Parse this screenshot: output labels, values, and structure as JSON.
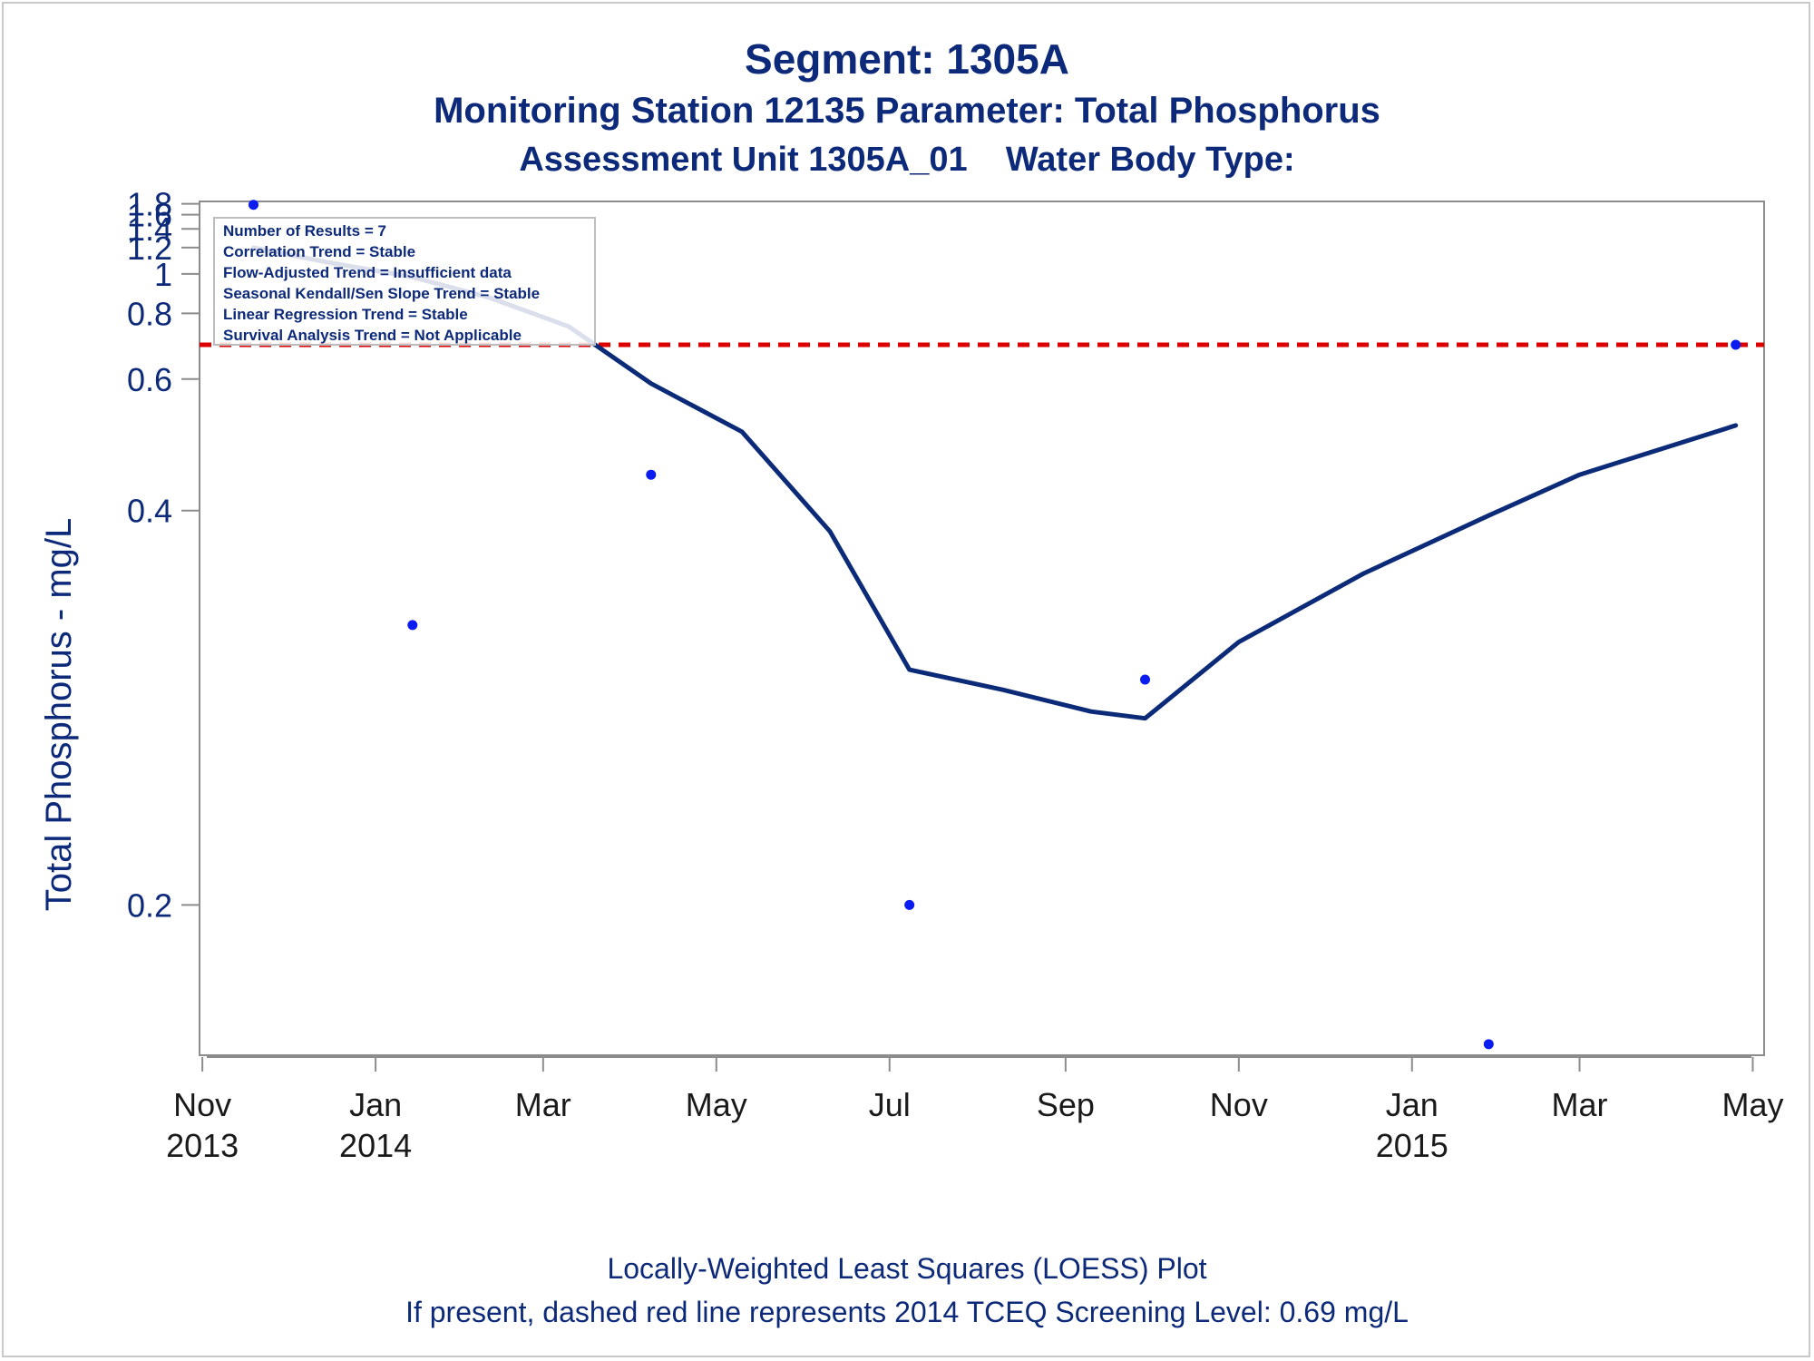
{
  "titles": {
    "title1": "Segment: 1305A",
    "title2": "Monitoring Station 12135 Parameter: Total Phosphorus",
    "title3": "Assessment Unit 1305A_01    Water Body Type:"
  },
  "footnotes": {
    "line1": "Locally-Weighted Least Squares (LOESS) Plot",
    "line2": "If present, dashed red line represents 2014 TCEQ Screening Level: 0.69 mg/L"
  },
  "inset": [
    "Number of Results = 7",
    "Correlation Trend = Stable",
    "Flow-Adjusted Trend = Insufficient data",
    "Seasonal Kendall/Sen Slope Trend = Stable",
    "Linear Regression Trend = Stable",
    "Survival Analysis Trend = Not Applicable"
  ],
  "colors": {
    "text": "#0d2a7a",
    "loess": "#0b2a78",
    "points": "#0a1cf0",
    "reference": "#dd0000",
    "axis": "#8c8c8c",
    "tick_text": "#1a1a1a"
  },
  "chart_data": {
    "type": "scatter",
    "ylabel": "Total Phosphorus - mg/L",
    "yscale": "reciprocal",
    "ylim": [
      0.168,
      1.85
    ],
    "xlim": [
      "2013-10-31",
      "2015-05-05"
    ],
    "y_ticks": [
      0.2,
      0.4,
      0.6,
      0.8,
      1,
      1.2,
      1.4,
      1.6,
      1.8
    ],
    "x_ticks": [
      {
        "date": "2013-11-01",
        "month": "Nov",
        "year": "2013"
      },
      {
        "date": "2014-01-01",
        "month": "Jan",
        "year": "2014"
      },
      {
        "date": "2014-03-01",
        "month": "Mar",
        "year": ""
      },
      {
        "date": "2014-05-01",
        "month": "May",
        "year": ""
      },
      {
        "date": "2014-07-01",
        "month": "Jul",
        "year": ""
      },
      {
        "date": "2014-09-01",
        "month": "Sep",
        "year": ""
      },
      {
        "date": "2014-11-01",
        "month": "Nov",
        "year": ""
      },
      {
        "date": "2015-01-01",
        "month": "Jan",
        "year": "2015"
      },
      {
        "date": "2015-03-01",
        "month": "Mar",
        "year": ""
      },
      {
        "date": "2015-05-01",
        "month": "May",
        "year": ""
      }
    ],
    "points": [
      {
        "date": "2013-11-19",
        "value": 1.78
      },
      {
        "date": "2014-01-14",
        "value": 0.31
      },
      {
        "date": "2014-04-08",
        "value": 0.44
      },
      {
        "date": "2014-07-08",
        "value": 0.2
      },
      {
        "date": "2014-09-29",
        "value": 0.28
      },
      {
        "date": "2015-01-28",
        "value": 0.17
      },
      {
        "date": "2015-04-25",
        "value": 0.69
      }
    ],
    "loess": [
      {
        "date": "2013-11-19",
        "value": 1.2
      },
      {
        "date": "2013-12-15",
        "value": 1.08
      },
      {
        "date": "2014-01-14",
        "value": 0.98
      },
      {
        "date": "2014-02-10",
        "value": 0.87
      },
      {
        "date": "2014-03-10",
        "value": 0.75
      },
      {
        "date": "2014-04-08",
        "value": 0.59
      },
      {
        "date": "2014-05-10",
        "value": 0.5
      },
      {
        "date": "2014-06-10",
        "value": 0.38
      },
      {
        "date": "2014-07-08",
        "value": 0.285
      },
      {
        "date": "2014-08-10",
        "value": 0.275
      },
      {
        "date": "2014-09-10",
        "value": 0.265
      },
      {
        "date": "2014-09-29",
        "value": 0.262
      },
      {
        "date": "2014-11-01",
        "value": 0.3
      },
      {
        "date": "2014-12-15",
        "value": 0.345
      },
      {
        "date": "2015-01-28",
        "value": 0.395
      },
      {
        "date": "2015-03-01",
        "value": 0.44
      },
      {
        "date": "2015-04-25",
        "value": 0.51
      }
    ],
    "reference_line": {
      "value": 0.69,
      "style": "dashed"
    }
  }
}
